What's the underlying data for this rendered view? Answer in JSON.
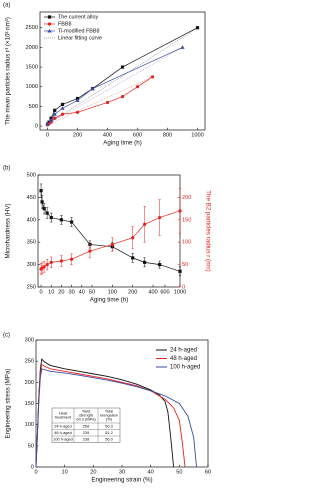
{
  "chart_data": [
    {
      "type": "line",
      "panel": "(a)",
      "x_label": "Aging time (h)",
      "y_label": "The mean particles radius r³ (×10³ nm³)",
      "xlim": [
        -50,
        1050
      ],
      "xticks": [
        0,
        200,
        400,
        600,
        800,
        1000
      ],
      "ylim": [
        -100,
        2900
      ],
      "yticks": [
        0,
        500,
        1000,
        1500,
        2000,
        2500
      ],
      "legend": "upper left",
      "fit_label": "Linear fitting curve",
      "series": [
        {
          "name": "The current alloy",
          "color": "#111111",
          "marker": "square",
          "x": [
            0,
            10,
            24,
            48,
            100,
            200,
            300,
            500,
            1000
          ],
          "values": [
            50,
            100,
            200,
            400,
            550,
            700,
            950,
            1500,
            2500
          ]
        },
        {
          "name": "FBB8",
          "color": "#e8211d",
          "marker": "circle",
          "x": [
            0,
            10,
            24,
            48,
            100,
            200,
            400,
            500,
            600,
            700
          ],
          "values": [
            30,
            60,
            100,
            200,
            300,
            350,
            600,
            750,
            1000,
            1250
          ]
        },
        {
          "name": "Ti-modified FBB8",
          "color": "#3b4ba8",
          "marker": "triangle",
          "x": [
            0,
            24,
            48,
            100,
            200,
            300,
            900
          ],
          "values": [
            50,
            150,
            300,
            450,
            650,
            950,
            2000
          ]
        }
      ]
    },
    {
      "type": "line",
      "panel": "(b)",
      "x_label": "Aging time (h)",
      "y_label": "Microhardness (HV)",
      "y2_label": "The B2 particles radius r (nm)",
      "xscale": {
        "type": "linear-log",
        "break": 50
      },
      "xlim": [
        -3,
        1000
      ],
      "xticks": [
        0,
        10,
        20,
        30,
        40,
        50,
        100,
        200,
        400,
        600,
        1000
      ],
      "ylim": [
        250,
        500
      ],
      "yticks": [
        250,
        300,
        350,
        400,
        450,
        500
      ],
      "y2lim": [
        0,
        250
      ],
      "y2ticks": [
        0,
        50,
        100,
        150,
        200
      ],
      "series": [
        {
          "name": "Microhardness",
          "color": "#111111",
          "marker": "square",
          "x": [
            0,
            1,
            3,
            6,
            10,
            20,
            30,
            48,
            100,
            200,
            300,
            500,
            1000
          ],
          "values": [
            465,
            440,
            425,
            415,
            405,
            400,
            395,
            345,
            340,
            315,
            305,
            300,
            285
          ],
          "errors": [
            15,
            14,
            12,
            12,
            10,
            10,
            10,
            8,
            10,
            10,
            10,
            8,
            10
          ]
        },
        {
          "name": "The B2 particles radius",
          "axis": "y2",
          "color": "#e8211d",
          "marker": "circle",
          "x": [
            0,
            1,
            3,
            6,
            10,
            20,
            30,
            48,
            100,
            200,
            300,
            500,
            1000
          ],
          "values": [
            40,
            42,
            45,
            50,
            55,
            58,
            62,
            80,
            95,
            110,
            140,
            155,
            170
          ],
          "errors": [
            12,
            12,
            12,
            12,
            12,
            12,
            12,
            15,
            15,
            25,
            40,
            40,
            50
          ]
        }
      ]
    },
    {
      "type": "line",
      "panel": "(c)",
      "x_label": "Engineering strain (%)",
      "y_label": "Engineering stress (MPa)",
      "xlim": [
        0,
        60
      ],
      "xticks": [
        0,
        10,
        20,
        30,
        40,
        50,
        60
      ],
      "ylim": [
        0,
        300
      ],
      "yticks": [
        0,
        50,
        100,
        150,
        200,
        250,
        300
      ],
      "legend": "upper right",
      "series": [
        {
          "name": "24 h-aged",
          "color": "#111111",
          "x": [
            0,
            0.5,
            1,
            1.5,
            2,
            3,
            5,
            10,
            15,
            20,
            25,
            30,
            35,
            40,
            43,
            45,
            46,
            47,
            48
          ],
          "values": [
            0,
            80,
            170,
            230,
            255,
            248,
            240,
            232,
            226,
            220,
            214,
            206,
            196,
            182,
            170,
            155,
            130,
            70,
            0
          ]
        },
        {
          "name": "48 h-aged",
          "color": "#e8211d",
          "x": [
            0,
            0.5,
            1,
            1.5,
            2,
            3,
            5,
            10,
            15,
            20,
            25,
            30,
            35,
            40,
            45,
            48,
            50,
            51,
            52
          ],
          "values": [
            0,
            80,
            165,
            220,
            242,
            238,
            232,
            226,
            220,
            214,
            208,
            200,
            192,
            180,
            160,
            140,
            110,
            60,
            0
          ]
        },
        {
          "name": "100 h-aged",
          "color": "#3b4ba8",
          "x": [
            0,
            0.5,
            1,
            1.5,
            2,
            3,
            5,
            10,
            15,
            20,
            25,
            30,
            35,
            40,
            45,
            50,
            53,
            55,
            56
          ],
          "values": [
            0,
            75,
            155,
            210,
            232,
            230,
            226,
            222,
            217,
            211,
            205,
            198,
            190,
            180,
            168,
            150,
            120,
            70,
            0
          ]
        }
      ],
      "table": {
        "header": [
          [
            "Heat",
            "treatment"
          ],
          [
            "Yield",
            "strength",
            "σ0.2 (MPa)"
          ],
          [
            "Total",
            "elongation",
            "(%)"
          ]
        ],
        "rows": [
          [
            "24 h-aged",
            "258",
            "50.3"
          ],
          [
            "48 h-aged",
            "239",
            "51.2"
          ],
          [
            "100 h-aged",
            "238",
            "56.0"
          ]
        ]
      }
    }
  ]
}
